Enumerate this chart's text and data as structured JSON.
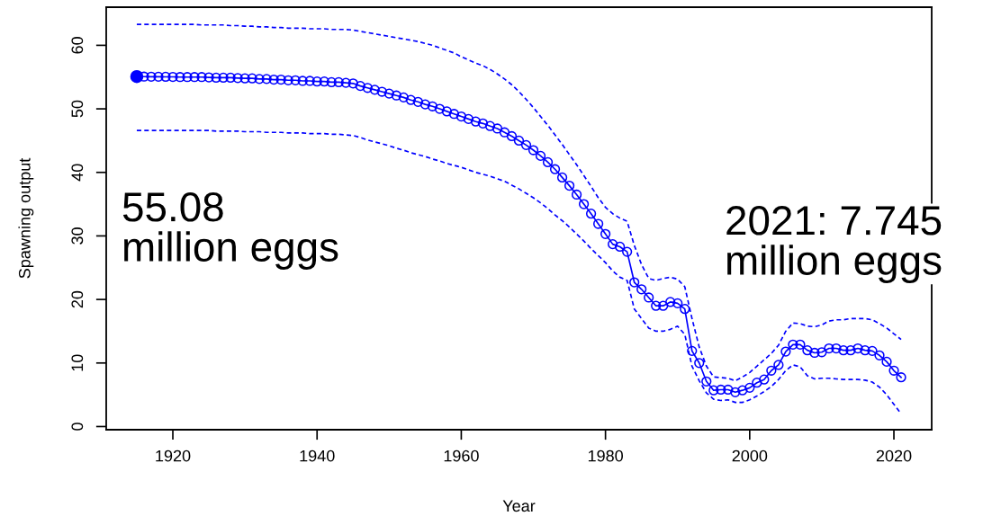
{
  "chart_data": {
    "type": "line",
    "xlabel": "Year",
    "ylabel": "Spawning output",
    "x": [
      1915,
      1916,
      1917,
      1918,
      1919,
      1920,
      1921,
      1922,
      1923,
      1924,
      1925,
      1926,
      1927,
      1928,
      1929,
      1930,
      1931,
      1932,
      1933,
      1934,
      1935,
      1936,
      1937,
      1938,
      1939,
      1940,
      1941,
      1942,
      1943,
      1944,
      1945,
      1946,
      1947,
      1948,
      1949,
      1950,
      1951,
      1952,
      1953,
      1954,
      1955,
      1956,
      1957,
      1958,
      1959,
      1960,
      1961,
      1962,
      1963,
      1964,
      1965,
      1966,
      1967,
      1968,
      1969,
      1970,
      1971,
      1972,
      1973,
      1974,
      1975,
      1976,
      1977,
      1978,
      1979,
      1980,
      1981,
      1982,
      1983,
      1984,
      1985,
      1986,
      1987,
      1988,
      1989,
      1990,
      1991,
      1992,
      1993,
      1994,
      1995,
      1996,
      1997,
      1998,
      1999,
      2000,
      2001,
      2002,
      2003,
      2004,
      2005,
      2006,
      2007,
      2008,
      2009,
      2010,
      2011,
      2012,
      2013,
      2014,
      2015,
      2016,
      2017,
      2018,
      2019,
      2020,
      2021
    ],
    "series": [
      {
        "color": "#0000ff",
        "marker": "circle",
        "line_style": "solid",
        "values": [
          55.08,
          55.07,
          55.06,
          55.05,
          55.04,
          55.03,
          55.0,
          55.0,
          55.0,
          55.0,
          54.95,
          54.9,
          54.9,
          54.9,
          54.85,
          54.8,
          54.8,
          54.7,
          54.7,
          54.6,
          54.6,
          54.5,
          54.5,
          54.4,
          54.4,
          54.3,
          54.3,
          54.2,
          54.2,
          54.1,
          54.0,
          53.6,
          53.3,
          53.0,
          52.7,
          52.4,
          52.1,
          51.8,
          51.4,
          51.1,
          50.7,
          50.4,
          50.0,
          49.6,
          49.2,
          48.8,
          48.4,
          48.0,
          47.7,
          47.3,
          46.9,
          46.3,
          45.7,
          45.0,
          44.3,
          43.5,
          42.6,
          41.6,
          40.5,
          39.2,
          37.9,
          36.5,
          35.0,
          33.5,
          31.9,
          30.3,
          28.7,
          28.3,
          27.5,
          22.7,
          21.6,
          20.3,
          19.0,
          19.0,
          19.6,
          19.4,
          18.5,
          11.9,
          10.0,
          7.1,
          5.7,
          5.8,
          5.8,
          5.4,
          5.7,
          6.1,
          6.9,
          7.4,
          8.8,
          9.7,
          11.8,
          12.9,
          12.9,
          12.0,
          11.6,
          11.7,
          12.3,
          12.3,
          12.0,
          12.0,
          12.3,
          12.0,
          11.9,
          11.2,
          10.2,
          8.8,
          7.745
        ]
      },
      {
        "color": "#0000ff",
        "marker": "none",
        "line_style": "dashed",
        "values": [
          63.3,
          63.3,
          63.3,
          63.3,
          63.3,
          63.3,
          63.3,
          63.3,
          63.3,
          63.2,
          63.2,
          63.2,
          63.2,
          63.1,
          63.1,
          63.0,
          63.0,
          62.9,
          62.9,
          62.8,
          62.8,
          62.7,
          62.7,
          62.7,
          62.6,
          62.6,
          62.6,
          62.5,
          62.5,
          62.5,
          62.4,
          62.2,
          62.0,
          61.8,
          61.6,
          61.4,
          61.2,
          61.0,
          60.8,
          60.6,
          60.3,
          60.0,
          59.6,
          59.2,
          58.8,
          58.2,
          57.7,
          57.2,
          56.8,
          56.2,
          55.5,
          54.7,
          53.8,
          52.7,
          51.5,
          50.2,
          48.8,
          47.4,
          45.9,
          44.4,
          42.8,
          41.2,
          39.5,
          37.8,
          36.0,
          34.5,
          33.5,
          32.8,
          32.3,
          28.5,
          25.5,
          23.3,
          23.0,
          23.3,
          23.5,
          23.2,
          22.0,
          17.0,
          12.5,
          9.5,
          7.8,
          7.7,
          7.6,
          7.2,
          7.8,
          8.5,
          9.5,
          10.5,
          11.5,
          12.8,
          15.0,
          16.3,
          16.2,
          15.8,
          15.7,
          16.0,
          16.6,
          16.8,
          16.8,
          17.0,
          17.0,
          17.0,
          16.8,
          16.2,
          15.5,
          14.6,
          13.7
        ]
      },
      {
        "color": "#0000ff",
        "marker": "none",
        "line_style": "dashed",
        "values": [
          46.6,
          46.6,
          46.6,
          46.6,
          46.6,
          46.6,
          46.6,
          46.6,
          46.6,
          46.6,
          46.6,
          46.5,
          46.5,
          46.5,
          46.5,
          46.4,
          46.4,
          46.4,
          46.3,
          46.3,
          46.3,
          46.2,
          46.2,
          46.2,
          46.1,
          46.1,
          46.1,
          46.0,
          46.0,
          45.9,
          45.8,
          45.5,
          45.1,
          44.8,
          44.5,
          44.2,
          43.8,
          43.5,
          43.1,
          42.8,
          42.5,
          42.1,
          41.8,
          41.4,
          41.1,
          40.8,
          40.4,
          40.0,
          39.7,
          39.4,
          39.0,
          38.6,
          38.0,
          37.4,
          36.7,
          36.0,
          35.2,
          34.3,
          33.3,
          32.4,
          31.4,
          30.3,
          29.2,
          28.0,
          26.9,
          25.8,
          24.5,
          23.5,
          23.0,
          18.5,
          17.0,
          15.5,
          15.0,
          15.0,
          15.3,
          15.8,
          14.5,
          9.5,
          7.2,
          5.3,
          4.3,
          4.1,
          4.2,
          3.8,
          3.8,
          4.2,
          4.8,
          5.5,
          6.3,
          7.4,
          8.8,
          9.7,
          9.4,
          8.0,
          7.5,
          7.6,
          7.6,
          7.5,
          7.4,
          7.4,
          7.4,
          7.3,
          7.0,
          6.2,
          5.0,
          3.5,
          2.0
        ]
      },
      {
        "type": "scatter",
        "color": "#0000ff",
        "marker": "circle",
        "x": [
          1915
        ],
        "values": [
          55.08
        ]
      }
    ],
    "annotations": [
      "55.08\nmillion eggs",
      "2021: 7.745\nmillion eggs"
    ],
    "xlim": [
      1910.76,
      2025.24
    ],
    "ylim": [
      -0.5,
      66
    ],
    "xticks": [
      1920,
      1940,
      1960,
      1980,
      2000,
      2020
    ],
    "yticks": [
      0,
      10,
      20,
      30,
      40,
      50,
      60
    ],
    "grid": false,
    "legend": false
  }
}
